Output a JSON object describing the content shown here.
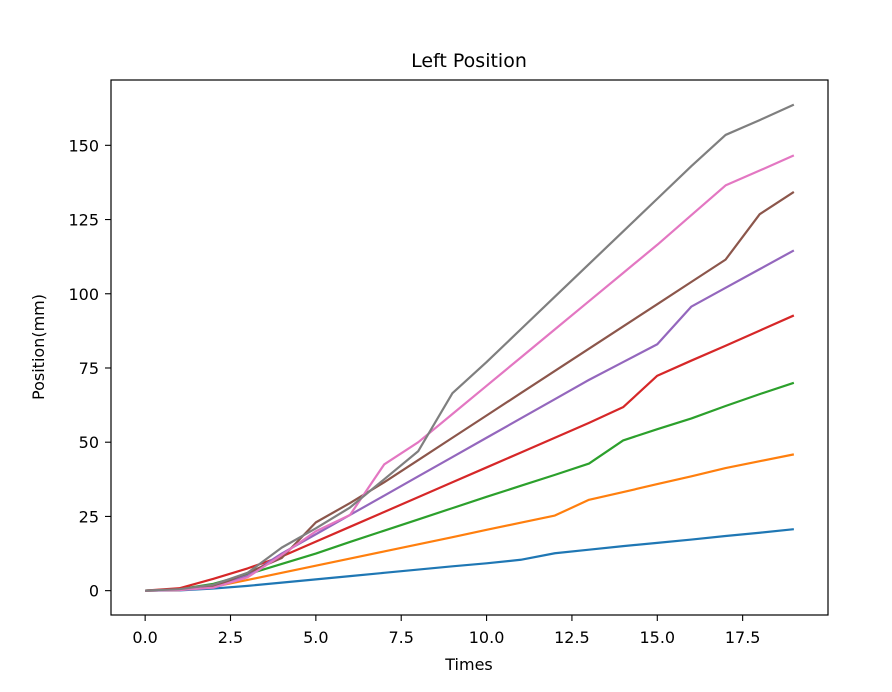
{
  "chart_data": {
    "type": "line",
    "title": "Left Position",
    "xlabel": "Times",
    "ylabel": "Position(mm)",
    "xlim": [
      -1.0,
      20.0
    ],
    "ylim": [
      -8.2,
      172.0
    ],
    "xticks": [
      0.0,
      2.5,
      5.0,
      7.5,
      10.0,
      12.5,
      15.0,
      17.5
    ],
    "xtick_labels": [
      "0.0",
      "2.5",
      "5.0",
      "7.5",
      "10.0",
      "12.5",
      "15.0",
      "17.5"
    ],
    "yticks": [
      0,
      25,
      50,
      75,
      100,
      125,
      150
    ],
    "ytick_labels": [
      "0",
      "25",
      "50",
      "75",
      "100",
      "125",
      "150"
    ],
    "grid": false,
    "series": [
      {
        "color": "#1f77b4",
        "x": [
          0,
          1,
          2,
          3,
          4,
          5,
          6,
          7,
          8,
          9,
          10,
          11,
          12,
          13,
          14,
          15,
          16,
          17,
          18,
          19
        ],
        "y": [
          0,
          0.1,
          0.7,
          1.6,
          2.7,
          3.8,
          4.9,
          6.0,
          7.1,
          8.2,
          9.2,
          10.4,
          12.6,
          13.8,
          15.0,
          16.1,
          17.2,
          18.4,
          19.5,
          20.7
        ]
      },
      {
        "color": "#ff7f0e",
        "x": [
          0,
          1,
          2,
          3,
          4,
          5,
          6,
          7,
          8,
          9,
          10,
          11,
          12,
          13,
          14,
          15,
          16,
          17,
          18,
          19
        ],
        "y": [
          0,
          0.2,
          1.3,
          3.6,
          6.0,
          8.4,
          10.8,
          13.2,
          15.6,
          18.0,
          20.5,
          22.9,
          25.3,
          30.6,
          33.2,
          35.9,
          38.5,
          41.3,
          43.6,
          45.9
        ]
      },
      {
        "color": "#2ca02c",
        "x": [
          0,
          1,
          2,
          3,
          4,
          5,
          6,
          7,
          8,
          9,
          10,
          11,
          12,
          13,
          14,
          15,
          16,
          17,
          18,
          19
        ],
        "y": [
          0,
          0.5,
          2.3,
          5.5,
          9.0,
          12.5,
          16.4,
          20.2,
          24.0,
          27.8,
          31.6,
          35.3,
          39.0,
          42.8,
          50.6,
          54.4,
          58.0,
          62.2,
          66.2,
          70.0
        ]
      },
      {
        "color": "#d62728",
        "x": [
          0,
          1,
          2,
          3,
          4,
          5,
          6,
          7,
          8,
          9,
          10,
          11,
          12,
          13,
          14,
          15,
          16,
          17,
          18,
          19
        ],
        "y": [
          0,
          0.8,
          4.0,
          7.5,
          11.5,
          16.5,
          21.5,
          26.5,
          31.5,
          36.5,
          41.5,
          46.5,
          51.5,
          56.5,
          61.8,
          72.4,
          77.5,
          82.5,
          87.6,
          92.7
        ]
      },
      {
        "color": "#9467bd",
        "x": [
          0,
          1,
          2,
          3,
          4,
          5,
          6,
          7,
          8,
          9,
          10,
          11,
          12,
          13,
          14,
          15,
          16,
          17,
          18,
          19
        ],
        "y": [
          0,
          0.2,
          1.5,
          5.0,
          12.5,
          19.0,
          25.5,
          32.0,
          38.5,
          45.0,
          51.5,
          58.0,
          64.5,
          71.0,
          77.0,
          83.0,
          95.7,
          102.0,
          108.3,
          114.6
        ]
      },
      {
        "color": "#8c564b",
        "x": [
          0,
          1,
          2,
          3,
          4,
          5,
          6,
          7,
          8,
          9,
          10,
          11,
          12,
          13,
          14,
          15,
          16,
          17,
          18,
          19
        ],
        "y": [
          0,
          0.2,
          1.3,
          6.0,
          11.0,
          23.0,
          29.5,
          36.5,
          44.0,
          51.5,
          59.0,
          66.5,
          74.0,
          81.5,
          89.0,
          96.5,
          104.0,
          111.5,
          126.8,
          134.3
        ]
      },
      {
        "color": "#e377c2",
        "x": [
          0,
          1,
          2,
          3,
          4,
          5,
          6,
          7,
          8,
          9,
          10,
          11,
          12,
          13,
          14,
          15,
          16,
          17,
          18,
          19
        ],
        "y": [
          0,
          0.2,
          1.0,
          4.5,
          12.0,
          20.0,
          25.5,
          42.5,
          50.0,
          59.5,
          69.0,
          78.5,
          88.0,
          97.5,
          107.0,
          116.5,
          126.5,
          136.5,
          141.5,
          146.6
        ]
      },
      {
        "color": "#7f7f7f",
        "x": [
          0,
          1,
          2,
          3,
          4,
          5,
          6,
          7,
          8,
          9,
          10,
          11,
          12,
          13,
          14,
          15,
          16,
          17,
          18,
          19
        ],
        "y": [
          0,
          0.5,
          2.0,
          6.0,
          14.5,
          21.0,
          28.0,
          37.5,
          47.0,
          66.5,
          77.0,
          88.0,
          99.0,
          110.0,
          121.0,
          132.0,
          143.0,
          153.5,
          158.5,
          163.7
        ]
      }
    ]
  }
}
